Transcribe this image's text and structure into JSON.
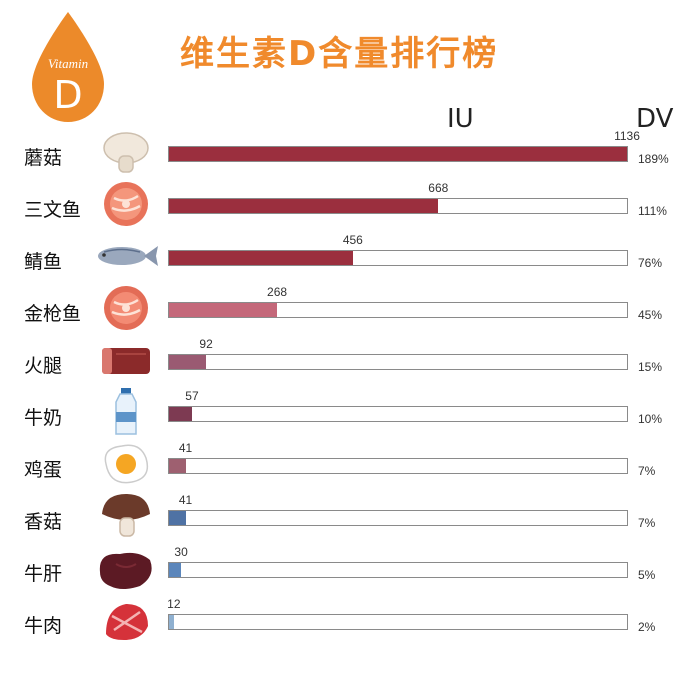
{
  "badge": {
    "label": "Vitamin",
    "letter": "D"
  },
  "title": "维生素D含量排行榜",
  "headers": {
    "iu": "IU",
    "dv": "DV"
  },
  "chart_data": {
    "type": "bar",
    "orientation": "horizontal",
    "title": "维生素D含量排行榜",
    "xlim": [
      0,
      1136
    ],
    "categories": [
      "蘑菇",
      "三文鱼",
      "鲭鱼",
      "金枪鱼",
      "火腿",
      "牛奶",
      "鸡蛋",
      "香菇",
      "牛肝",
      "牛肉"
    ],
    "series": [
      {
        "name": "IU",
        "values": [
          1136,
          668,
          456,
          268,
          92,
          57,
          41,
          41,
          30,
          12
        ]
      },
      {
        "name": "DV",
        "values": [
          189,
          111,
          76,
          45,
          15,
          10,
          7,
          7,
          5,
          2
        ]
      }
    ],
    "iu_labels": [
      "1136",
      "668",
      "456",
      "268",
      "92",
      "57",
      "41",
      "41",
      "30",
      "12"
    ],
    "dv_labels": [
      "189%",
      "111%",
      "76%",
      "45%",
      "15%",
      "10%",
      "7%",
      "7%",
      "5%",
      "2%"
    ],
    "colors": [
      "#9b2f3e",
      "#9b2f3e",
      "#9b2f3e",
      "#c4687a",
      "#9a5a72",
      "#7d3a52",
      "#9e6070",
      "#4f72a4",
      "#5b86bb",
      "#8fb0d0"
    ],
    "icons": [
      "mushroom-icon",
      "salmon-steak-icon",
      "mackerel-icon",
      "tuna-steak-icon",
      "ham-icon",
      "milk-bottle-icon",
      "fried-egg-icon",
      "shiitake-icon",
      "liver-icon",
      "beef-icon"
    ],
    "grid": false,
    "legend": "none"
  }
}
